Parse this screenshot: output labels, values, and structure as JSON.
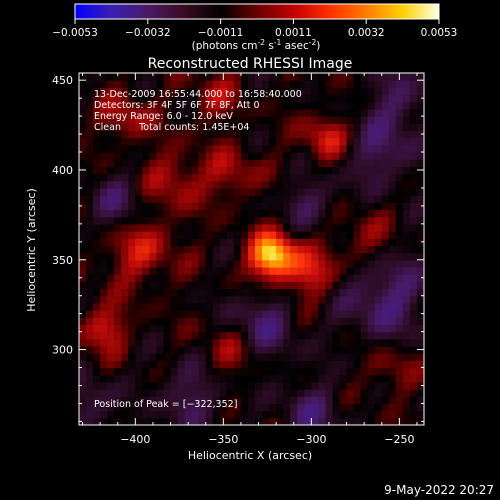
{
  "colorbar": {
    "ticks": [
      "-0.0053",
      "-0.0032",
      "-0.0011",
      "0.0011",
      "0.0032",
      "0.0053"
    ],
    "unit_prefix": "(photons cm",
    "unit_exp1": "-2",
    "unit_mid": " s",
    "unit_exp2": "-1",
    "unit_mid2": " asec",
    "unit_exp3": "-2",
    "unit_suffix": ")",
    "colors": [
      "#0000ff",
      "#3a1fb0",
      "#4b1a66",
      "#3a0b22",
      "#000000",
      "#6a0000",
      "#c00000",
      "#ff3000",
      "#ff7a00",
      "#ffd000",
      "#ffffe8"
    ]
  },
  "chart_data": {
    "type": "heatmap",
    "title": "Reconstructed RHESSI Image",
    "xlabel": "Heliocentric X (arcsec)",
    "ylabel": "Heliocentric Y (arcsec)",
    "xlim": [
      -432,
      -236
    ],
    "ylim": [
      258,
      454
    ],
    "xticks": [
      {
        "value": -400,
        "label": "−400"
      },
      {
        "value": -350,
        "label": "−350"
      },
      {
        "value": -300,
        "label": "−300"
      },
      {
        "value": -250,
        "label": "−250"
      }
    ],
    "yticks": [
      {
        "value": 300,
        "label": "300"
      },
      {
        "value": 350,
        "label": "350"
      },
      {
        "value": 400,
        "label": "400"
      },
      {
        "value": 450,
        "label": "450"
      }
    ],
    "vrange": [
      -0.0053,
      0.0053
    ],
    "peak": {
      "x": -322,
      "y": 352
    },
    "info_lines": [
      "13-Dec-2009 16:55:44.000 to 16:58:40.000",
      "Detectors: 3F 4F 5F 6F 7F 8F, Att 0",
      "Energy Range: 6.0 - 12.0 keV",
      "Clean      Total counts: 1.45E+04"
    ],
    "peak_label": "Position of Peak = [−322,352]"
  },
  "footer": {
    "date": "9-May-2022 20:27"
  }
}
